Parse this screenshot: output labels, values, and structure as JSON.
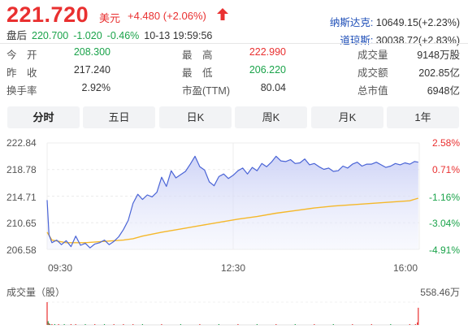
{
  "quote": {
    "price": "221.720",
    "currency": "美元",
    "change": "+4.480 (+2.06%)",
    "after_hours": {
      "label": "盘后",
      "price": "220.700",
      "change": "-1.020",
      "change_pct": "-0.46%",
      "time": "10-13 19:59:56"
    }
  },
  "indices": [
    {
      "name": "纳斯达克:",
      "value": "10649.15(+2.23%)"
    },
    {
      "name": "道琼斯:",
      "value": "30038.72(+2.83%)"
    }
  ],
  "stats": {
    "open_label": "今　开",
    "open": "208.300",
    "prev_close_label": "昨　收",
    "prev_close": "217.240",
    "turnover_label": "换手率",
    "turnover": "2.92%",
    "high_label": "最　高",
    "high": "222.990",
    "low_label": "最　低",
    "low": "206.220",
    "pe_label": "市盈(TTM)",
    "pe": "80.04",
    "volume_label": "成交量",
    "volume": "9148万股",
    "amount_label": "成交额",
    "amount": "202.85亿",
    "mktcap_label": "总市值",
    "mktcap": "6948亿"
  },
  "tabs": [
    "分时",
    "五日",
    "日K",
    "周K",
    "月K",
    "1年"
  ],
  "active_tab": "分时",
  "colors": {
    "price_line": "#4a64d6",
    "area_top": "#c7cdf5",
    "avg_line": "#f5b82a",
    "up": "#e93030",
    "down": "#1aa34a"
  },
  "chart_data": {
    "type": "line",
    "y_left_ticks": [
      "222.84",
      "218.78",
      "214.71",
      "210.65",
      "206.58"
    ],
    "y_right_ticks": [
      "2.58%",
      "0.71%",
      "-1.16%",
      "-3.04%",
      "-4.91%"
    ],
    "x_ticks": [
      "09:30",
      "12:30",
      "16:00"
    ],
    "ylim": [
      206.58,
      222.84
    ],
    "x_range_minutes": [
      0,
      390
    ],
    "series": [
      {
        "role": "price",
        "x": [
          0,
          2,
          5,
          10,
          15,
          20,
          25,
          30,
          35,
          40,
          45,
          50,
          55,
          60,
          65,
          70,
          75,
          80,
          85,
          90,
          95,
          100,
          105,
          110,
          115,
          120,
          125,
          130,
          135,
          140,
          145,
          150,
          155,
          160,
          165,
          170,
          175,
          180,
          185,
          190,
          195,
          200,
          205,
          210,
          215,
          220,
          225,
          230,
          235,
          240,
          245,
          250,
          255,
          260,
          265,
          270,
          275,
          280,
          285,
          290,
          295,
          300,
          305,
          310,
          315,
          320,
          325,
          330,
          335,
          340,
          345,
          350,
          355,
          360,
          365,
          370,
          375,
          380,
          385,
          389
        ],
        "values": [
          214.1,
          208.8,
          207.6,
          208.0,
          207.3,
          207.9,
          207.0,
          208.6,
          207.2,
          207.5,
          206.8,
          207.4,
          207.6,
          208.0,
          207.3,
          207.8,
          208.5,
          209.6,
          211.0,
          213.6,
          215.0,
          214.2,
          214.9,
          214.6,
          215.3,
          217.6,
          216.2,
          218.6,
          217.5,
          218.0,
          218.5,
          219.6,
          220.8,
          219.2,
          218.7,
          216.9,
          216.3,
          217.7,
          218.1,
          217.4,
          217.9,
          218.6,
          219.0,
          218.1,
          219.1,
          218.6,
          219.7,
          219.2,
          219.9,
          220.8,
          220.1,
          220.0,
          220.3,
          219.7,
          219.8,
          220.4,
          219.5,
          219.7,
          219.2,
          218.8,
          219.0,
          218.5,
          218.6,
          219.3,
          219.0,
          219.6,
          219.9,
          219.3,
          219.6,
          219.6,
          219.9,
          219.5,
          219.1,
          219.3,
          219.7,
          219.5,
          219.8,
          219.6,
          220.0,
          219.9
        ]
      },
      {
        "role": "average",
        "x": [
          0,
          5,
          20,
          40,
          60,
          80,
          90,
          100,
          120,
          140,
          160,
          180,
          200,
          220,
          240,
          260,
          280,
          300,
          320,
          340,
          360,
          380,
          389
        ],
        "values": [
          209.2,
          208.0,
          207.6,
          207.6,
          207.8,
          208.0,
          208.2,
          208.6,
          209.2,
          209.7,
          210.2,
          210.7,
          211.2,
          211.6,
          212.1,
          212.5,
          212.9,
          213.2,
          213.4,
          213.6,
          213.8,
          214.0,
          214.4
        ]
      }
    ],
    "volume": {
      "label": "成交量（股）",
      "max_label": "558.46万",
      "x": [
        0,
        1,
        2,
        3,
        5,
        8,
        12,
        18,
        25,
        30,
        40,
        50,
        60,
        70,
        80,
        90,
        100,
        120,
        140,
        160,
        180,
        200,
        220,
        240,
        260,
        280,
        300,
        320,
        340,
        360,
        380,
        386,
        388,
        389
      ],
      "values": [
        558,
        90,
        40,
        22,
        15,
        10,
        8,
        7,
        6,
        8,
        5,
        6,
        5,
        7,
        6,
        9,
        8,
        5,
        5,
        6,
        5,
        5,
        4,
        4,
        4,
        4,
        4,
        4,
        5,
        5,
        6,
        18,
        60,
        420
      ],
      "up": [
        true,
        false,
        true,
        false,
        true,
        false,
        true,
        false,
        true,
        true,
        false,
        true,
        false,
        true,
        true,
        true,
        false,
        true,
        false,
        true,
        false,
        true,
        false,
        true,
        false,
        true,
        false,
        true,
        true,
        false,
        true,
        true,
        true,
        true
      ]
    }
  }
}
